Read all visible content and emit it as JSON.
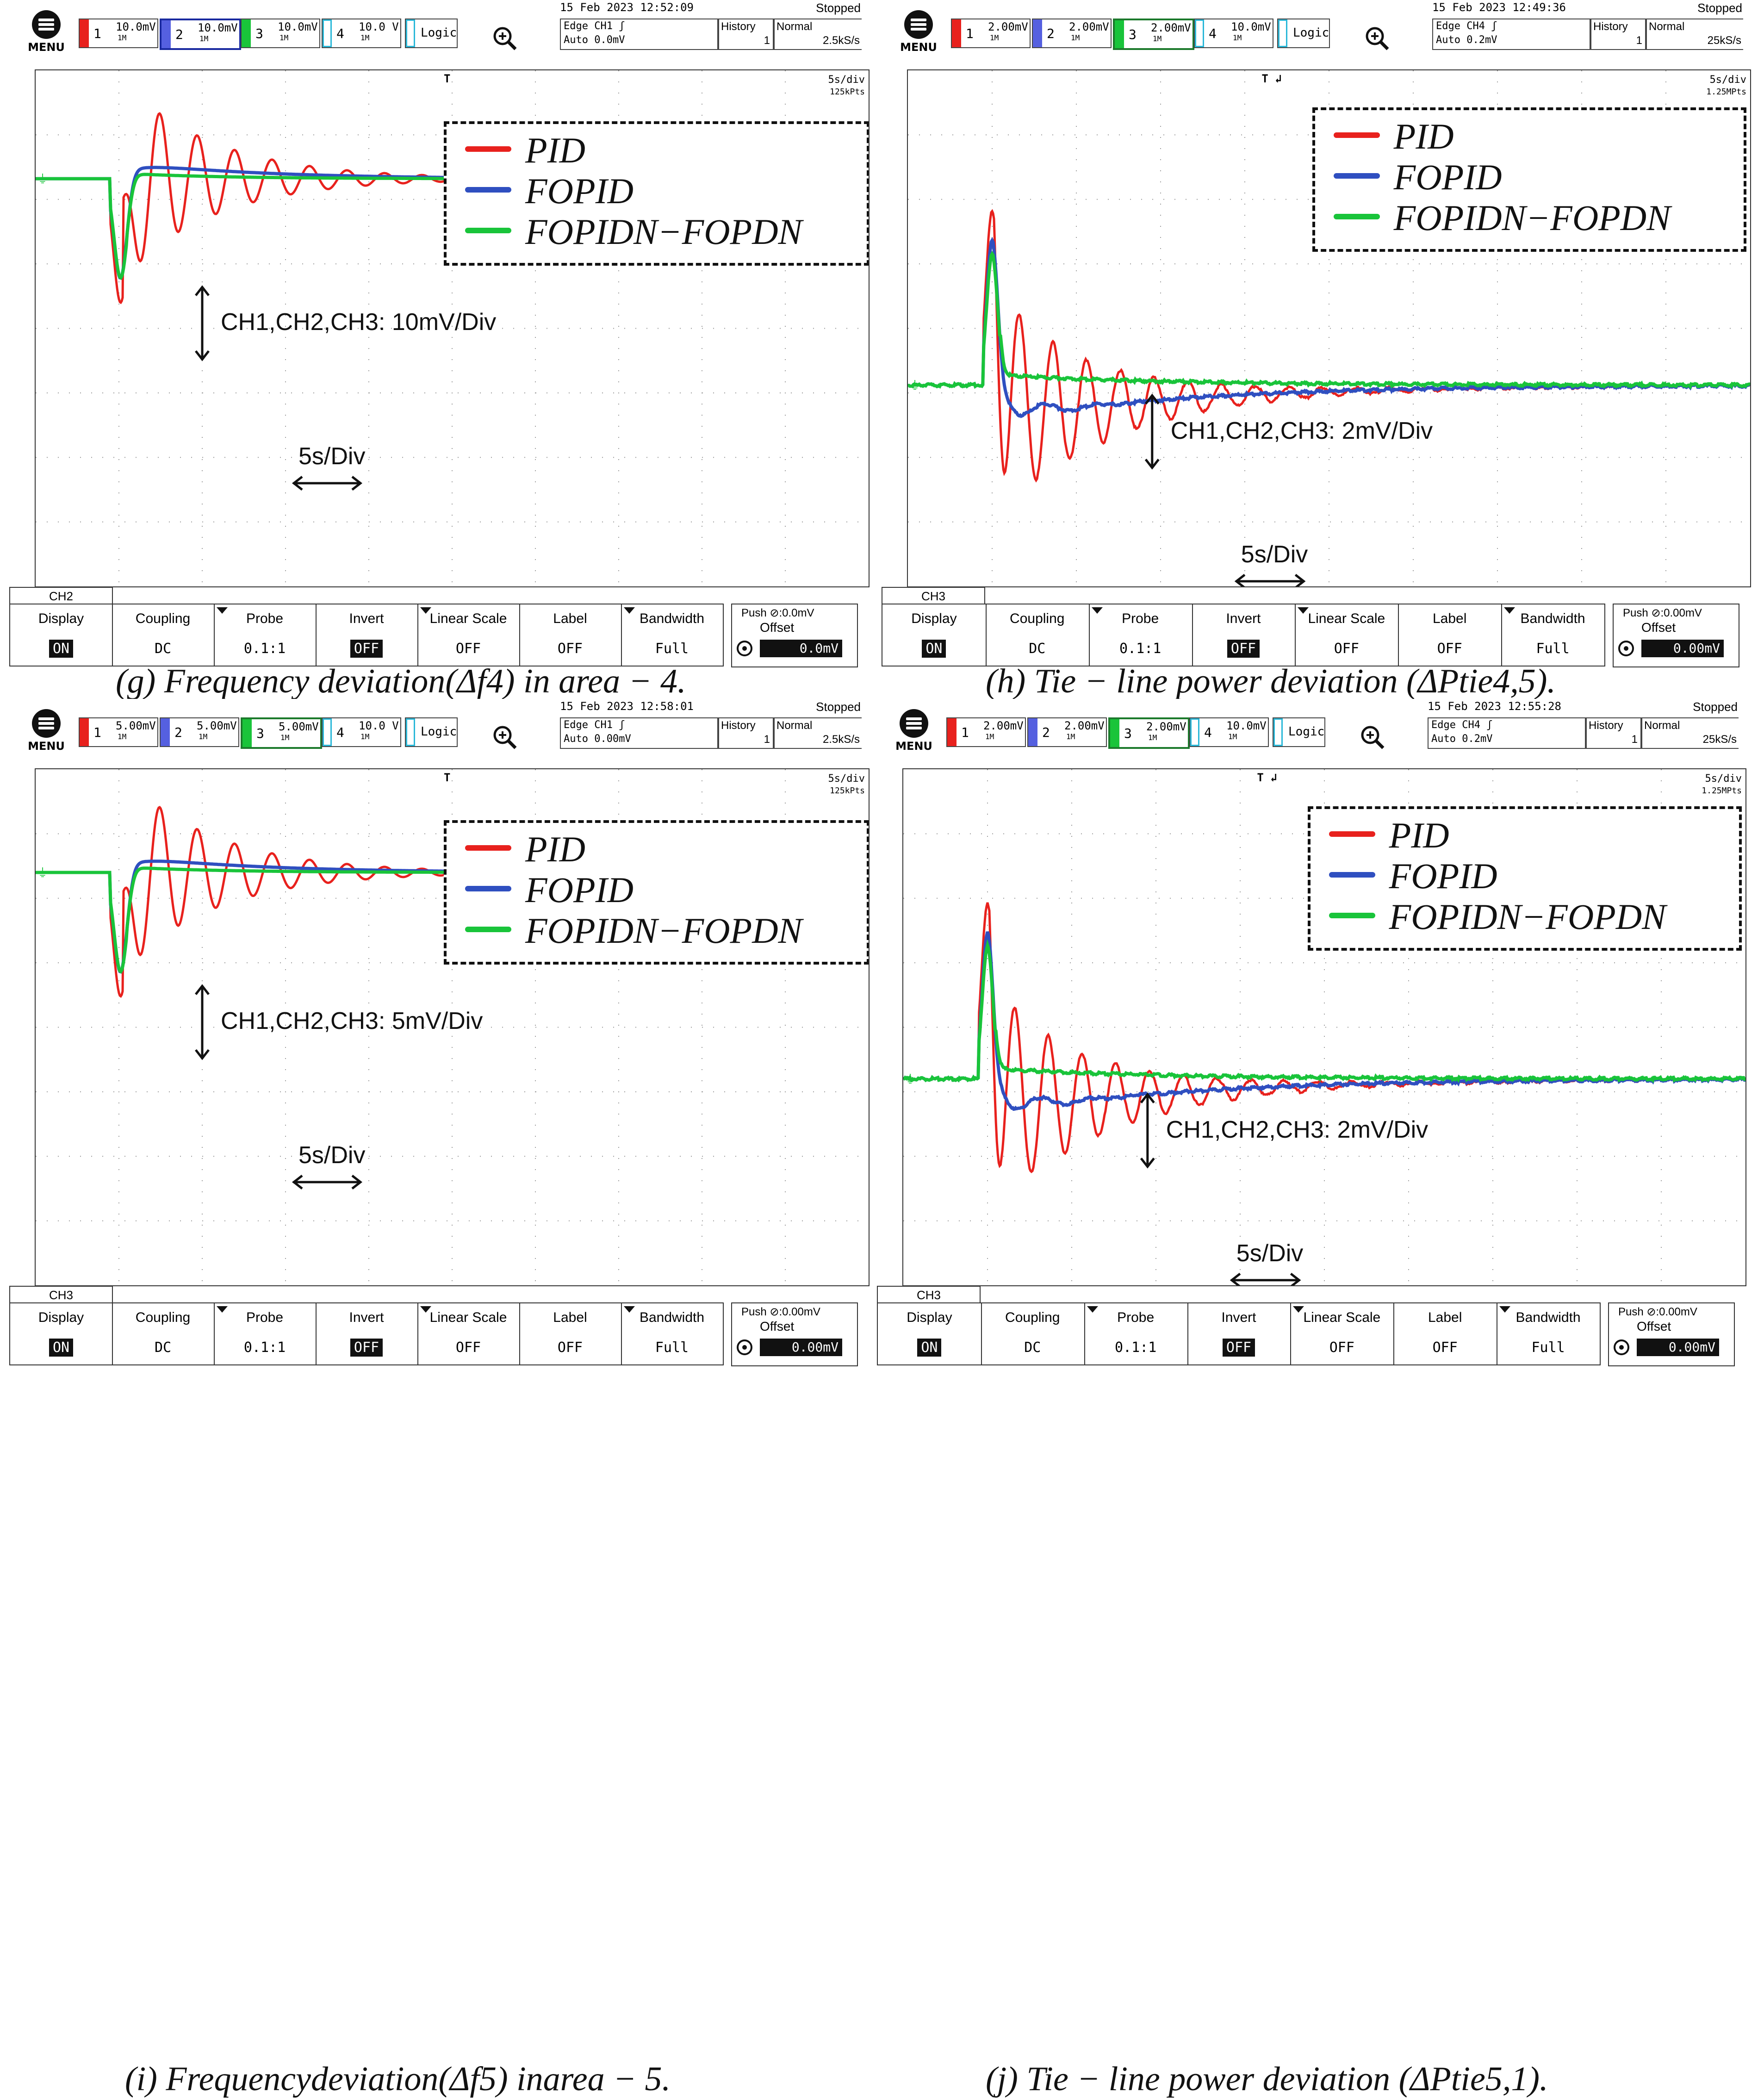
{
  "common": {
    "menu_label": "MENU",
    "status": "Stopped",
    "history_label": "History",
    "history_value": "1",
    "normal_label": "Normal",
    "logic_label": "Logic",
    "timebase": "5s/div",
    "coupling_badge": "1M",
    "trig_marker": "T",
    "legend": [
      "PID",
      "FOPID",
      "FOPIDN−FOPDN"
    ],
    "colors": {
      "pid": "#e8211d",
      "fopid": "#2f4fc0",
      "fopidn": "#19c43a",
      "grid": "#9a9a9a"
    },
    "menu_headers": [
      "Display",
      "Coupling",
      "Probe",
      "Invert",
      "Linear Scale",
      "Label",
      "Bandwidth"
    ],
    "menu_values": [
      "ON",
      "DC",
      "0.1:1",
      "OFF",
      "OFF",
      "OFF",
      "Full"
    ],
    "push_label": "Push",
    "offset_label": "Offset",
    "time_anno": "5s/Div",
    "ch_labels": [
      "1",
      "2",
      "3",
      "4"
    ],
    "icons": {
      "menu": "menu-icon",
      "zoom": "zoom-search-icon",
      "knob": "rotary-knob-icon"
    }
  },
  "panels": [
    {
      "id": "g",
      "date": "15 Feb 2023 12:52:09",
      "channel_scales": [
        "10.0mV",
        "10.0mV",
        "10.0mV",
        "10.0 V"
      ],
      "trigger_line1": "Edge CH1 ʃ",
      "trigger_line2": "Auto 0.0mV",
      "sample_rate": "2.5kS/s",
      "points": "125kPts",
      "ch_tab": "CH2",
      "offset_push": ":0.0mV",
      "offset_value": "0.0mV",
      "anno_ch": "CH1,CH2,CH3: 10mV/Div",
      "caption": "(g) Frequency deviation(Δf4) in area − 4."
    },
    {
      "id": "h",
      "date": "15 Feb 2023 12:49:36",
      "channel_scales": [
        "2.00mV",
        "2.00mV",
        "2.00mV",
        "10.0mV"
      ],
      "trigger_line1": "Edge CH4 ʃ",
      "trigger_line2": "Auto 0.2mV",
      "sample_rate": "25kS/s",
      "points": "1.25MPts",
      "ch_tab": "CH3",
      "offset_push": ":0.00mV",
      "offset_value": "0.00mV",
      "anno_ch": "CH1,CH2,CH3: 2mV/Div",
      "caption": "(h) Tie − line power deviation (ΔPtie4,5)."
    },
    {
      "id": "i",
      "date": "15 Feb 2023 12:58:01",
      "channel_scales": [
        "5.00mV",
        "5.00mV",
        "5.00mV",
        "10.0 V"
      ],
      "trigger_line1": "Edge CH1 ʃ",
      "trigger_line2": "Auto 0.00mV",
      "sample_rate": "2.5kS/s",
      "points": "125kPts",
      "ch_tab": "CH3",
      "offset_push": ":0.00mV",
      "offset_value": "0.00mV",
      "anno_ch": "CH1,CH2,CH3: 5mV/Div",
      "caption": "(i) Frequencydeviation(Δf5) inarea − 5."
    },
    {
      "id": "j",
      "date": "15 Feb 2023 12:55:28",
      "channel_scales": [
        "2.00mV",
        "2.00mV",
        "2.00mV",
        "10.0mV"
      ],
      "trigger_line1": "Edge CH4 ʃ",
      "trigger_line2": "Auto 0.2mV",
      "sample_rate": "25kS/s",
      "points": "1.25MPts",
      "ch_tab": "CH3",
      "offset_push": ":0.00mV",
      "offset_value": "0.00mV",
      "anno_ch": "CH1,CH2,CH3: 2mV/Div",
      "caption": "(j) Tie − line power deviation (ΔPtie5,1)."
    }
  ]
}
